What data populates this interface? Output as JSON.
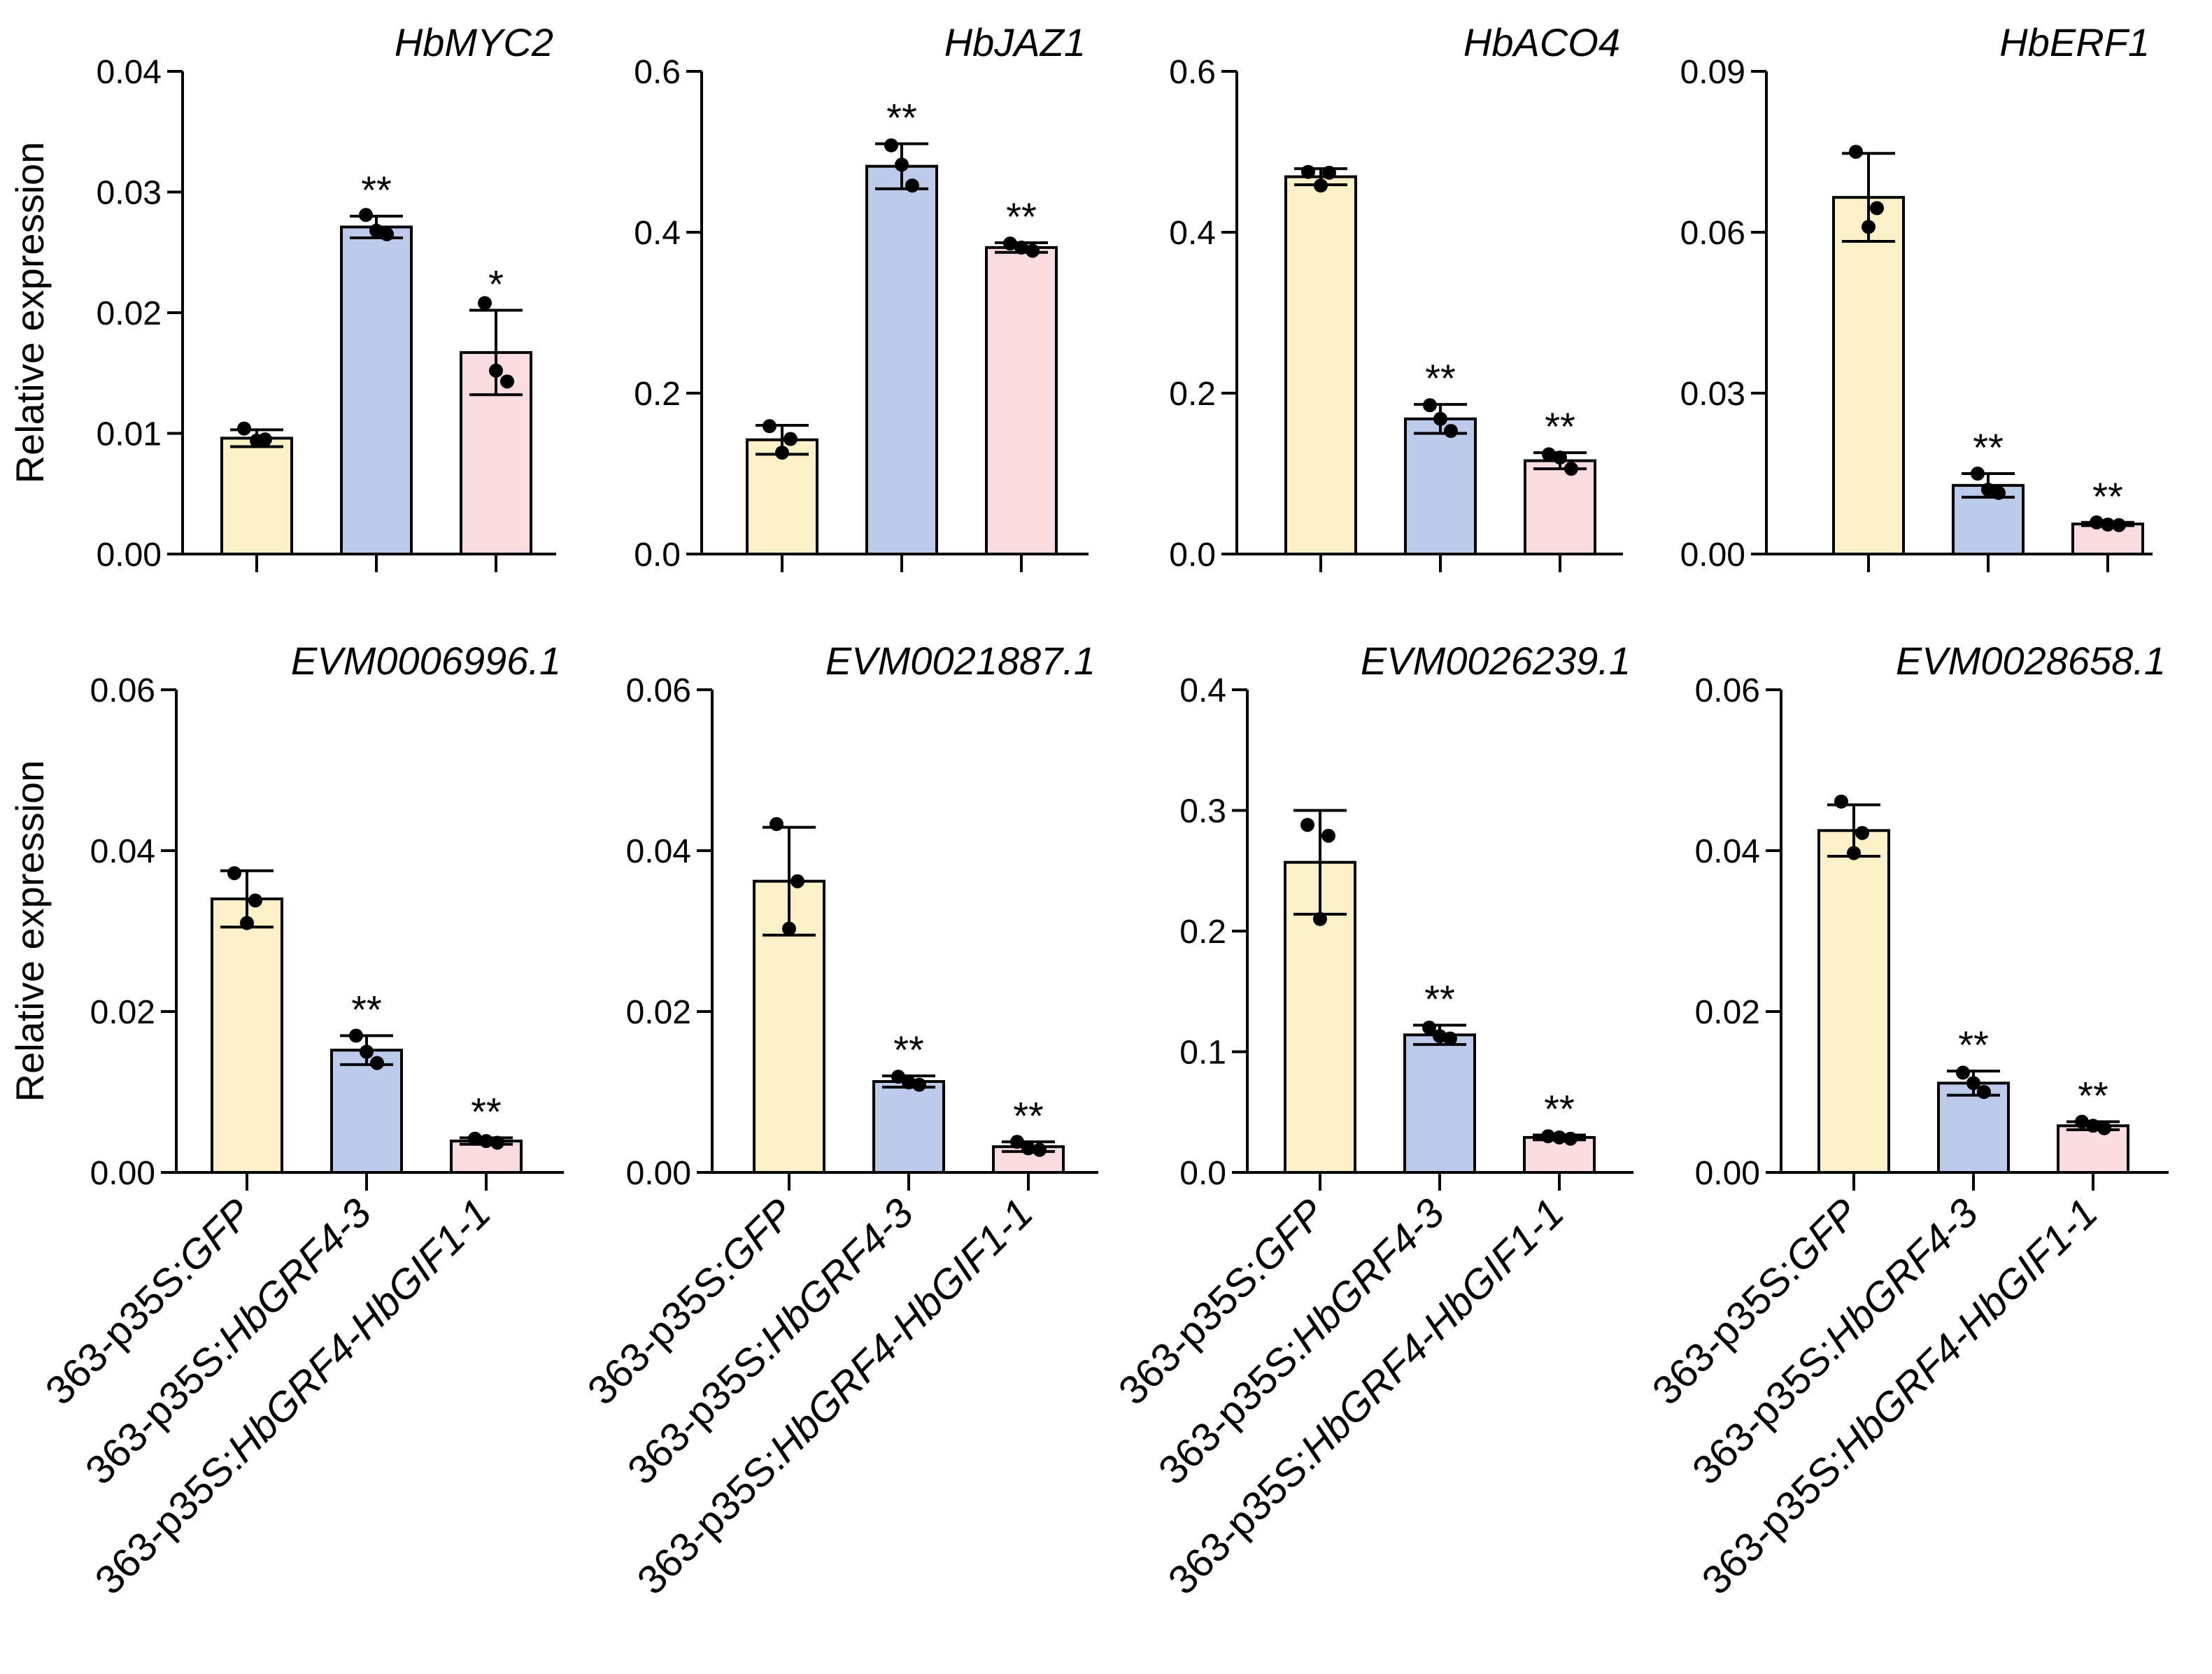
{
  "colors": {
    "gfp": "#fbf0c8",
    "grf4": "#bccbe9",
    "grf4_gif1": "#fadbdf"
  },
  "y_axis_label": "Relative expression",
  "group_labels": [
    {
      "prefix": "363-p35S:",
      "gene": "GFP"
    },
    {
      "prefix": "363-p35S:",
      "gene": "HbGRF4-3"
    },
    {
      "prefix": "363-p35S:",
      "gene": "HbGRF4-HbGIF1-1"
    }
  ],
  "chart_data": [
    {
      "type": "bar",
      "title": "HbMYC2",
      "ylabel": "Relative expression",
      "ylim": [
        0,
        0.04
      ],
      "yticks": [
        "0.00",
        "0.01",
        "0.02",
        "0.03",
        "0.04"
      ],
      "categories": [
        "363-p35S:GFP",
        "363-p35S:HbGRF4-3",
        "363-p35S:HbGRF4-HbGIF1-1"
      ],
      "values": [
        0.0096,
        0.0271,
        0.0167
      ],
      "errors": [
        0.0007,
        0.0009,
        0.0035
      ],
      "points": [
        [
          0.0104,
          0.0095,
          0.0094
        ],
        [
          0.0281,
          0.0268,
          0.0265
        ],
        [
          0.0208,
          0.0152,
          0.0143
        ]
      ],
      "significance": [
        "",
        "**",
        "*"
      ]
    },
    {
      "type": "bar",
      "title": "HbJAZ1",
      "ylabel": "",
      "ylim": [
        0,
        0.6
      ],
      "yticks": [
        "0.0",
        "0.2",
        "0.4",
        "0.6"
      ],
      "categories": [
        "363-p35S:GFP",
        "363-p35S:HbGRF4-3",
        "363-p35S:HbGRF4-HbGIF1-1"
      ],
      "values": [
        0.142,
        0.482,
        0.381
      ],
      "errors": [
        0.018,
        0.028,
        0.006
      ],
      "points": [
        [
          0.159,
          0.143,
          0.126
        ],
        [
          0.508,
          0.484,
          0.458
        ],
        [
          0.386,
          0.381,
          0.377
        ]
      ],
      "significance": [
        "",
        "**",
        "**"
      ]
    },
    {
      "type": "bar",
      "title": "HbACO4",
      "ylabel": "",
      "ylim": [
        0,
        0.6
      ],
      "yticks": [
        "0.0",
        "0.2",
        "0.4",
        "0.6"
      ],
      "categories": [
        "363-p35S:GFP",
        "363-p35S:HbGRF4-3",
        "363-p35S:HbGRF4-HbGIF1-1"
      ],
      "values": [
        0.469,
        0.168,
        0.116
      ],
      "errors": [
        0.01,
        0.018,
        0.01
      ],
      "points": [
        [
          0.475,
          0.474,
          0.458
        ],
        [
          0.185,
          0.168,
          0.153
        ],
        [
          0.124,
          0.12,
          0.106
        ]
      ],
      "significance": [
        "",
        "**",
        "**"
      ]
    },
    {
      "type": "bar",
      "title": "HbERF1",
      "ylabel": "",
      "ylim": [
        0,
        0.09
      ],
      "yticks": [
        "0.00",
        "0.03",
        "0.06",
        "0.09"
      ],
      "categories": [
        "363-p35S:GFP",
        "363-p35S:HbGRF4-3",
        "363-p35S:HbGRF4-HbGIF1-1"
      ],
      "values": [
        0.0665,
        0.0128,
        0.0056
      ],
      "errors": [
        0.0082,
        0.0022,
        0.0003
      ],
      "points": [
        [
          0.075,
          0.0645,
          0.061
        ],
        [
          0.015,
          0.012,
          0.0114
        ],
        [
          0.0059,
          0.0055,
          0.0054
        ]
      ],
      "significance": [
        "",
        "**",
        "**"
      ]
    },
    {
      "type": "bar",
      "title": "EVM0006996.1",
      "ylabel": "Relative expression",
      "ylim": [
        0,
        0.06
      ],
      "yticks": [
        "0.00",
        "0.02",
        "0.04",
        "0.06"
      ],
      "categories": [
        "363-p35S:GFP",
        "363-p35S:HbGRF4-3",
        "363-p35S:HbGRF4-HbGIF1-1"
      ],
      "values": [
        0.034,
        0.0152,
        0.0039
      ],
      "errors": [
        0.0035,
        0.0018,
        0.0004
      ],
      "points": [
        [
          0.0372,
          0.0338,
          0.031
        ],
        [
          0.017,
          0.015,
          0.0136
        ],
        [
          0.0042,
          0.0039,
          0.0037
        ]
      ],
      "significance": [
        "",
        "**",
        "**"
      ]
    },
    {
      "type": "bar",
      "title": "EVM0021887.1",
      "ylabel": "",
      "ylim": [
        0,
        0.06
      ],
      "yticks": [
        "0.00",
        "0.02",
        "0.04",
        "0.06"
      ],
      "categories": [
        "363-p35S:GFP",
        "363-p35S:HbGRF4-3",
        "363-p35S:HbGRF4-HbGIF1-1"
      ],
      "values": [
        0.0362,
        0.0113,
        0.0032
      ],
      "errors": [
        0.0067,
        0.0007,
        0.0006
      ],
      "points": [
        [
          0.0433,
          0.0362,
          0.0303
        ],
        [
          0.0119,
          0.0112,
          0.0109
        ],
        [
          0.0038,
          0.003,
          0.0028
        ]
      ],
      "significance": [
        "",
        "**",
        "**"
      ]
    },
    {
      "type": "bar",
      "title": "EVM0026239.1",
      "ylabel": "",
      "ylim": [
        0,
        0.4
      ],
      "yticks": [
        "0.0",
        "0.1",
        "0.2",
        "0.3",
        "0.4"
      ],
      "categories": [
        "363-p35S:GFP",
        "363-p35S:HbGRF4-3",
        "363-p35S:HbGRF4-HbGIF1-1"
      ],
      "values": [
        0.257,
        0.114,
        0.029
      ],
      "errors": [
        0.043,
        0.008,
        0.002
      ],
      "points": [
        [
          0.288,
          0.279,
          0.21
        ],
        [
          0.12,
          0.113,
          0.111
        ],
        [
          0.03,
          0.029,
          0.028
        ]
      ],
      "significance": [
        "",
        "**",
        "**"
      ]
    },
    {
      "type": "bar",
      "title": "EVM0028658.1",
      "ylabel": "",
      "ylim": [
        0,
        0.06
      ],
      "yticks": [
        "0.00",
        "0.02",
        "0.04",
        "0.06"
      ],
      "categories": [
        "363-p35S:GFP",
        "363-p35S:HbGRF4-3",
        "363-p35S:HbGRF4-HbGIF1-1"
      ],
      "values": [
        0.0425,
        0.0111,
        0.0058
      ],
      "errors": [
        0.0032,
        0.0015,
        0.0005
      ],
      "points": [
        [
          0.0461,
          0.0422,
          0.0397
        ],
        [
          0.0124,
          0.0111,
          0.01
        ],
        [
          0.0063,
          0.0058,
          0.0055
        ]
      ],
      "significance": [
        "",
        "**",
        "**"
      ]
    }
  ]
}
